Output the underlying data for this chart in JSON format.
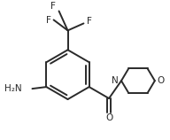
{
  "background_color": "#ffffff",
  "line_color": "#2a2a2a",
  "line_width": 1.4,
  "font_size": 7.5,
  "figsize": [
    1.92,
    1.58
  ],
  "dpi": 100,
  "xlim": [
    0,
    96
  ],
  "ylim": [
    0,
    79
  ]
}
